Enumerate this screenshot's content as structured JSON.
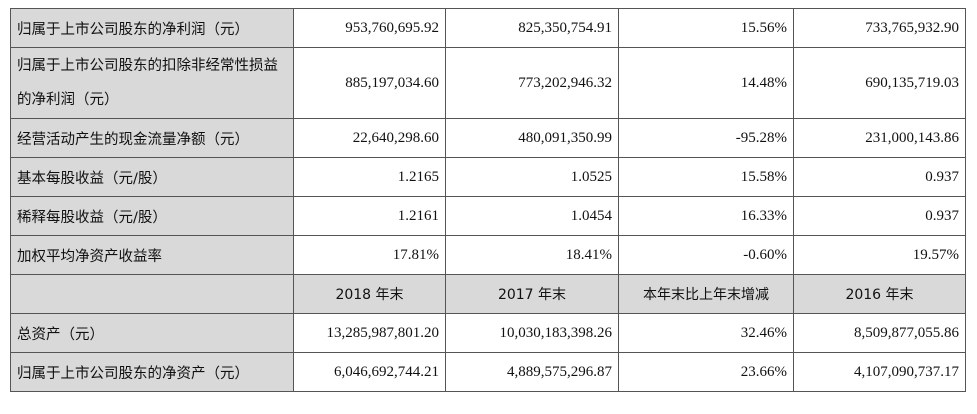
{
  "rows": [
    {
      "label": "归属于上市公司股东的净利润（元）",
      "values": [
        "953,760,695.92",
        "825,350,754.91",
        "15.56%",
        "733,765,932.90"
      ]
    },
    {
      "label": "归属于上市公司股东的扣除非经常性损益的净利润（元）",
      "values": [
        "885,197,034.60",
        "773,202,946.32",
        "14.48%",
        "690,135,719.03"
      ]
    },
    {
      "label": "经营活动产生的现金流量净额（元）",
      "values": [
        "22,640,298.60",
        "480,091,350.99",
        "-95.28%",
        "231,000,143.86"
      ]
    },
    {
      "label": "基本每股收益（元/股）",
      "values": [
        "1.2165",
        "1.0525",
        "15.58%",
        "0.937"
      ]
    },
    {
      "label": "稀释每股收益（元/股）",
      "values": [
        "1.2161",
        "1.0454",
        "16.33%",
        "0.937"
      ]
    },
    {
      "label": "加权平均净资产收益率",
      "values": [
        "17.81%",
        "18.41%",
        "-0.60%",
        "19.57%"
      ]
    }
  ],
  "header2": [
    "",
    "2018 年末",
    "2017 年末",
    "本年末比上年末增减",
    "2016 年末"
  ],
  "rows2": [
    {
      "label": "总资产（元）",
      "values": [
        "13,285,987,801.20",
        "10,030,183,398.26",
        "32.46%",
        "8,509,877,055.86"
      ]
    },
    {
      "label": "归属于上市公司股东的净资产（元）",
      "values": [
        "6,046,692,744.21",
        "4,889,575,296.87",
        "23.66%",
        "4,107,090,737.17"
      ]
    }
  ]
}
